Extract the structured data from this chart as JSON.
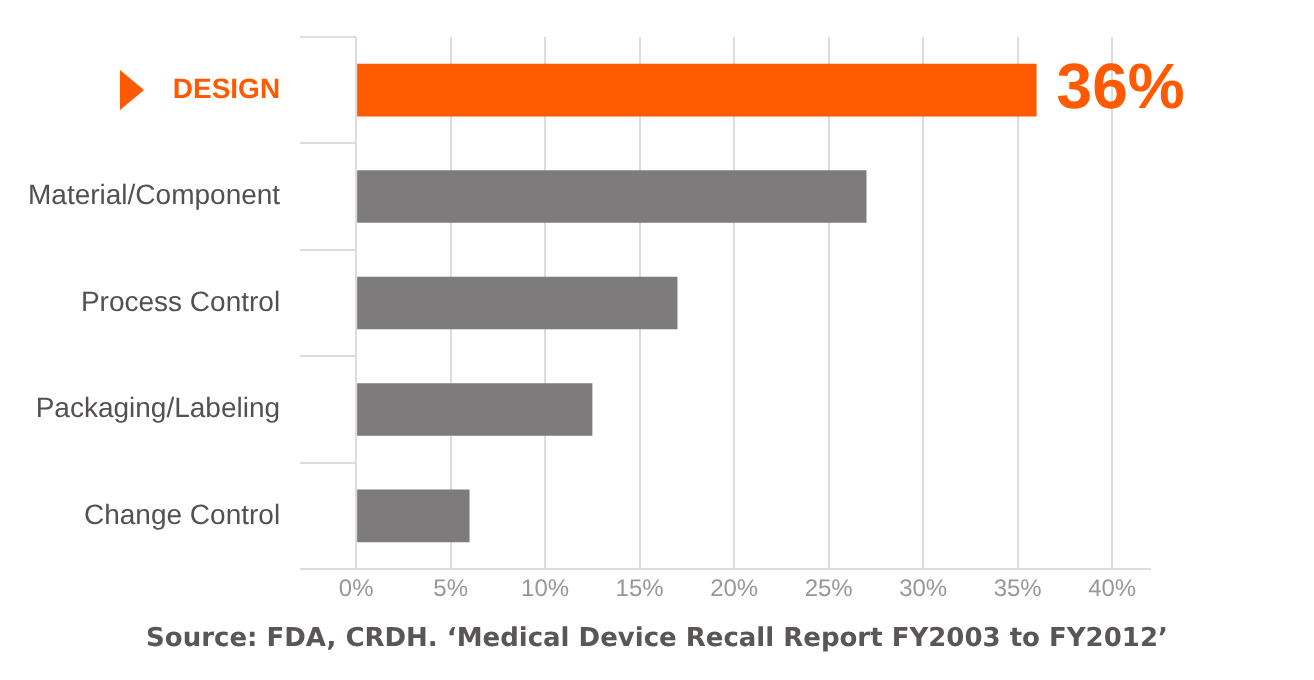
{
  "chart_data": {
    "type": "bar",
    "orientation": "horizontal",
    "categories": [
      "DESIGN",
      "Material/Component",
      "Process Control",
      "Packaging/Labeling",
      "Change Control"
    ],
    "values": [
      36,
      27,
      17,
      12.5,
      6
    ],
    "colors": [
      "#ff5a00",
      "#7d7b7b",
      "#7d7b7b",
      "#7d7b7b",
      "#7d7b7b"
    ],
    "value_labels": [
      "36%",
      null,
      null,
      null,
      null
    ],
    "xlim": [
      0,
      42
    ],
    "xticks": [
      {
        "value": 0,
        "label": "0%"
      },
      {
        "value": 5,
        "label": "5%"
      },
      {
        "value": 10,
        "label": "10%"
      },
      {
        "value": 15,
        "label": "15%"
      },
      {
        "value": 20,
        "label": "20%"
      },
      {
        "value": 25,
        "label": "25%"
      },
      {
        "value": 30,
        "label": "30%"
      },
      {
        "value": 35,
        "label": "35%"
      },
      {
        "value": 40,
        "label": "40%"
      }
    ],
    "grid": "x",
    "annotations": [
      "Source: FDA, CRDH. ‘Medical Device Recall Report FY2003 to FY2012’"
    ]
  }
}
